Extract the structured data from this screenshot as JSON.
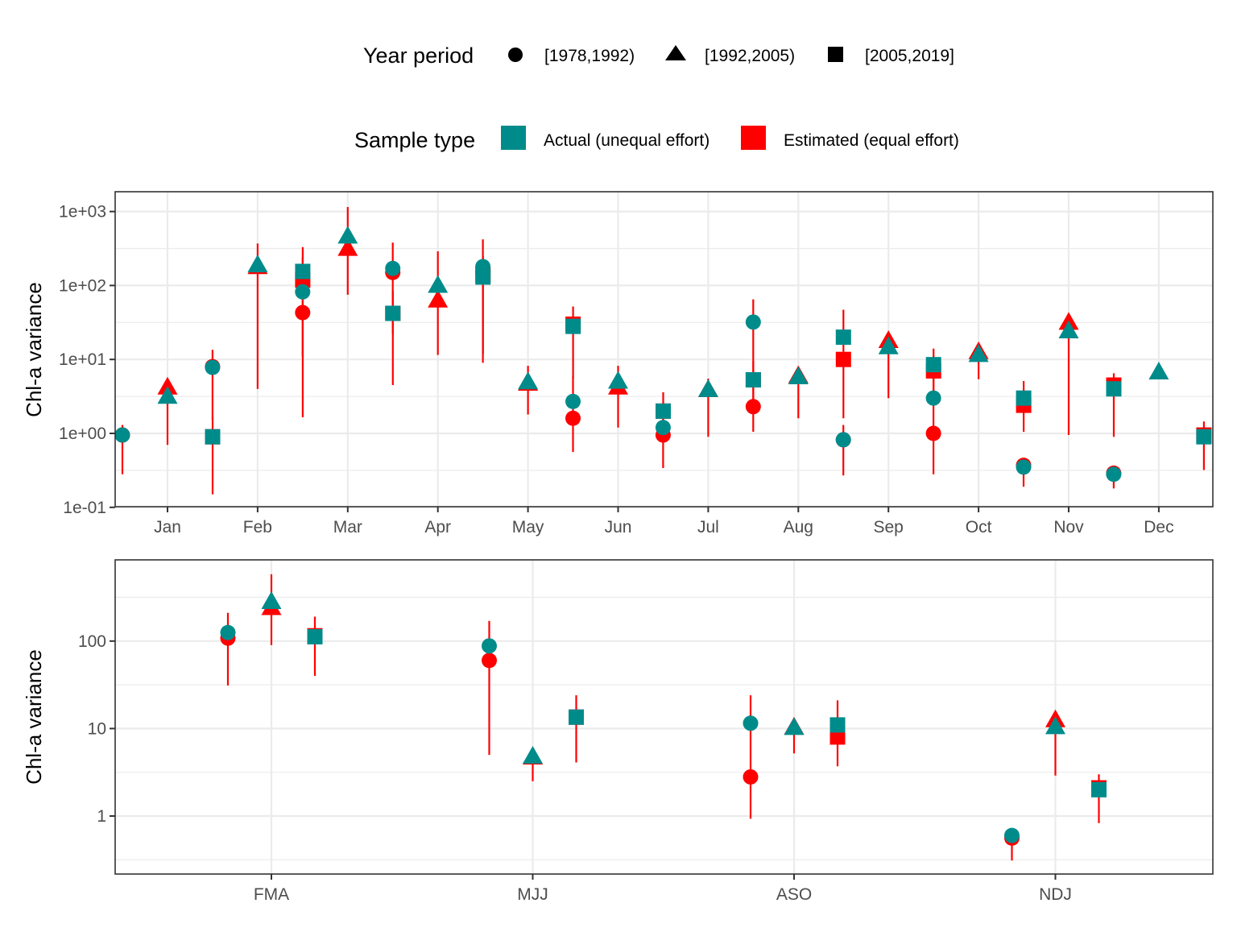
{
  "chart_data": [
    {
      "type": "scatter",
      "subtype": "point-range (log scale)",
      "panel": "monthly",
      "title": "",
      "xlabel": "",
      "ylabel": "Chl-a variance",
      "yscale": "log10",
      "ylim": [
        0.1,
        1800
      ],
      "yticks": [
        0.1,
        1,
        10,
        100,
        1000
      ],
      "ytick_labels": [
        "1e-01",
        "1e+00",
        "1e+01",
        "1e+02",
        "1e+03"
      ],
      "grid": true,
      "categories": [
        "Jan",
        "Feb",
        "Mar",
        "Apr",
        "May",
        "Jun",
        "Jul",
        "Aug",
        "Sep",
        "Oct",
        "Nov",
        "Dec"
      ],
      "series": [
        {
          "period": "[1978,1992)",
          "sample_type": "Actual (unequal effort)",
          "values": [
            0.95,
            7.8,
            82,
            170,
            180,
            2.7,
            1.2,
            32,
            0.82,
            3.0,
            0.35,
            0.28
          ]
        },
        {
          "period": "[1978,1992)",
          "sample_type": "Estimated (equal effort)",
          "values": [
            0.95,
            8.0,
            43,
            150,
            150,
            1.6,
            0.95,
            2.3,
            0.82,
            1.0,
            0.37,
            0.29
          ],
          "lower": [
            0.28,
            1.55,
            11,
            22,
            9,
            0.56,
            0.34,
            1.05,
            0.27,
            0.28,
            0.19,
            0.18
          ],
          "upper": [
            1.3,
            13.5,
            240,
            380,
            420,
            5.9,
            2.2,
            65,
            1.3,
            6.0,
            0.4,
            0.33
          ]
        },
        {
          "period": "[1992,2005)",
          "sample_type": "Actual (unequal effort)",
          "values": [
            3.0,
            180,
            440,
            95,
            4.7,
            4.8,
            3.7,
            5.5,
            14,
            11,
            23,
            6.4
          ]
        },
        {
          "period": "[1992,2005)",
          "sample_type": "Estimated (equal effort)",
          "values": [
            4.0,
            170,
            300,
            60,
            4.5,
            4.0,
            3.7,
            5.7,
            17,
            12,
            30,
            null
          ],
          "lower": [
            0.7,
            4.0,
            75,
            11.5,
            1.8,
            1.2,
            0.9,
            1.6,
            3.0,
            5.4,
            0.95,
            null
          ],
          "upper": [
            4.0,
            370,
            1150,
            290,
            8.2,
            8.2,
            5.5,
            5.7,
            17,
            12,
            30,
            null
          ]
        },
        {
          "period": "[2005,2019]",
          "sample_type": "Actual (unequal effort)",
          "values": [
            0.9,
            155,
            42,
            130,
            28,
            2.0,
            5.3,
            20,
            8.5,
            3.0,
            4.0,
            0.9
          ]
        },
        {
          "period": "[2005,2019]",
          "sample_type": "Estimated (equal effort)",
          "values": [
            0.9,
            118,
            42,
            140,
            30,
            2.0,
            5.3,
            10,
            7.0,
            2.4,
            4.5,
            0.95
          ],
          "lower": [
            0.15,
            1.65,
            4.5,
            12,
            5.5,
            0.75,
            2.0,
            1.6,
            2.4,
            1.05,
            0.9,
            0.32
          ],
          "upper": [
            1.7,
            330,
            85,
            250,
            52,
            3.6,
            9.5,
            47,
            14,
            5.1,
            6.5,
            1.45
          ]
        }
      ]
    },
    {
      "type": "scatter",
      "subtype": "point-range (log scale)",
      "panel": "seasonal",
      "title": "",
      "xlabel": "",
      "ylabel": "Chl-a variance",
      "yscale": "log10",
      "ylim": [
        0.22,
        950
      ],
      "yticks": [
        1,
        10,
        100
      ],
      "ytick_labels": [
        "1",
        "10",
        "100"
      ],
      "grid": true,
      "categories": [
        "FMA",
        "MJJ",
        "ASO",
        "NDJ"
      ],
      "series": [
        {
          "period": "[1978,1992)",
          "sample_type": "Actual (unequal effort)",
          "values": [
            125,
            88,
            11.5,
            0.6
          ]
        },
        {
          "period": "[1978,1992)",
          "sample_type": "Estimated (equal effort)",
          "values": [
            108,
            60,
            2.8,
            0.56
          ],
          "lower": [
            31,
            5.0,
            0.93,
            0.31
          ],
          "upper": [
            210,
            170,
            24,
            0.6
          ]
        },
        {
          "period": "[1992,2005)",
          "sample_type": "Actual (unequal effort)",
          "values": [
            270,
            4.6,
            9.8,
            10
          ]
        },
        {
          "period": "[1992,2005)",
          "sample_type": "Estimated (equal effort)",
          "values": [
            230,
            4.5,
            9.9,
            12
          ],
          "lower": [
            90,
            2.5,
            5.2,
            2.9
          ],
          "upper": [
            580,
            4.6,
            9.9,
            12
          ]
        },
        {
          "period": "[2005,2019]",
          "sample_type": "Actual (unequal effort)",
          "values": [
            112,
            13.5,
            11,
            2.0
          ]
        },
        {
          "period": "[2005,2019]",
          "sample_type": "Estimated (equal effort)",
          "values": [
            115,
            13.5,
            8.0,
            2.1
          ],
          "lower": [
            40,
            4.1,
            3.7,
            0.83
          ],
          "upper": [
            190,
            24,
            21,
            3.0
          ]
        }
      ]
    }
  ],
  "legend": {
    "year_period": {
      "title": "Year period",
      "items": [
        {
          "label": "[1978,1992)",
          "shape": "circle"
        },
        {
          "label": "[1992,2005)",
          "shape": "triangle"
        },
        {
          "label": "[2005,2019]",
          "shape": "square"
        }
      ]
    },
    "sample_type": {
      "title": "Sample type",
      "items": [
        {
          "label": "Actual (unequal effort)",
          "color": "#008b8b"
        },
        {
          "label": "Estimated (equal effort)",
          "color": "#ff0000"
        }
      ]
    }
  },
  "colors": {
    "actual": "#008b8b",
    "estimated": "#ff0000",
    "grid": "#ebebeb",
    "axis": "#333333",
    "tick_text": "#4d4d4d"
  }
}
